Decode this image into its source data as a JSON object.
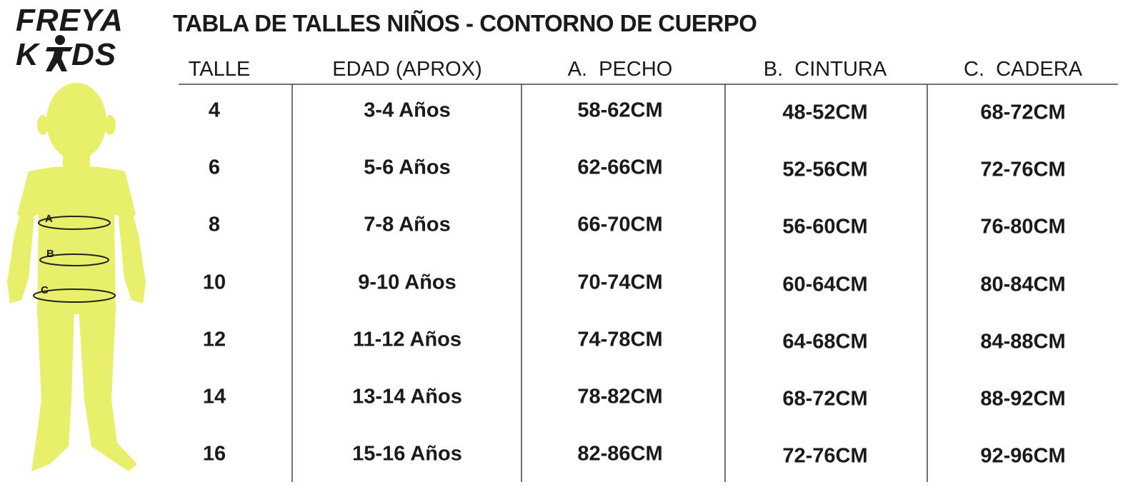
{
  "logo": {
    "line1": "FREYA",
    "line2_left": "K",
    "line2_right": "DS"
  },
  "figure": {
    "labels": [
      "A",
      "B",
      "C"
    ]
  },
  "title": "TABLA DE TALLES NIÑOS - CONTORNO DE CUERPO",
  "table": {
    "headers": [
      "TALLE",
      "EDAD (APROX)",
      "A.  PECHO",
      "B.  CINTURA",
      "C.  CADERA"
    ],
    "rows": [
      [
        "4",
        "3-4 Años",
        "58-62CM",
        "48-52CM",
        "68-72CM"
      ],
      [
        "6",
        "5-6 Años",
        "62-66CM",
        "52-56CM",
        "72-76CM"
      ],
      [
        "8",
        "7-8 Años",
        "66-70CM",
        "56-60CM",
        "76-80CM"
      ],
      [
        "10",
        "9-10 Años",
        "70-74CM",
        "60-64CM",
        "80-84CM"
      ],
      [
        "12",
        "11-12 Años",
        "74-78CM",
        "64-68CM",
        "84-88CM"
      ],
      [
        "14",
        "13-14 Años",
        "78-82CM",
        "68-72CM",
        "88-92CM"
      ],
      [
        "16",
        "15-16 Años",
        "82-86CM",
        "72-76CM",
        "92-96CM"
      ]
    ]
  }
}
